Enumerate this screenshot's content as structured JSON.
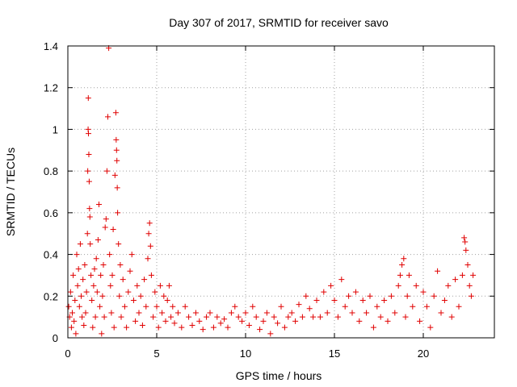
{
  "chart_data": {
    "type": "scatter",
    "title": "Day 307 of 2017, SRMTID for receiver savo",
    "xlabel": "GPS time / hours",
    "ylabel": "SRMTID / TECUs",
    "xlim": [
      0,
      24
    ],
    "ylim": [
      0,
      1.4
    ],
    "xticks": [
      0,
      5,
      10,
      15,
      20
    ],
    "yticks": [
      0,
      0.2,
      0.4,
      0.6,
      0.8,
      1,
      1.2,
      1.4
    ],
    "xtick_labels": [
      "0",
      "5",
      "10",
      "15",
      "20"
    ],
    "ytick_labels": [
      "0",
      "0.2",
      "0.4",
      "0.6",
      "0.8",
      "1",
      "1.2",
      "1.4"
    ],
    "grid": true,
    "marker": "+",
    "color": "#e00000",
    "series": [
      {
        "name": "SRMTID",
        "points": [
          [
            0.05,
            0.15
          ],
          [
            0.1,
            0.1
          ],
          [
            0.15,
            0.22
          ],
          [
            0.2,
            0.05
          ],
          [
            0.25,
            0.12
          ],
          [
            0.3,
            0.3
          ],
          [
            0.35,
            0.08
          ],
          [
            0.4,
            0.18
          ],
          [
            0.45,
            0.02
          ],
          [
            0.5,
            0.4
          ],
          [
            0.55,
            0.25
          ],
          [
            0.6,
            0.33
          ],
          [
            0.65,
            0.15
          ],
          [
            0.7,
            0.45
          ],
          [
            0.75,
            0.2
          ],
          [
            0.8,
            0.1
          ],
          [
            0.85,
            0.28
          ],
          [
            0.9,
            0.06
          ],
          [
            0.95,
            0.35
          ],
          [
            1.0,
            0.12
          ],
          [
            1.05,
            0.22
          ],
          [
            1.1,
            0.5
          ],
          [
            1.12,
            0.8
          ],
          [
            1.14,
            1.0
          ],
          [
            1.15,
            1.15
          ],
          [
            1.16,
            0.98
          ],
          [
            1.18,
            0.88
          ],
          [
            1.2,
            0.75
          ],
          [
            1.22,
            0.62
          ],
          [
            1.24,
            0.58
          ],
          [
            1.26,
            0.45
          ],
          [
            1.3,
            0.3
          ],
          [
            1.35,
            0.18
          ],
          [
            1.4,
            0.05
          ],
          [
            1.45,
            0.25
          ],
          [
            1.5,
            0.33
          ],
          [
            1.55,
            0.1
          ],
          [
            1.6,
            0.38
          ],
          [
            1.65,
            0.22
          ],
          [
            1.7,
            0.47
          ],
          [
            1.75,
            0.64
          ],
          [
            1.8,
            0.15
          ],
          [
            1.85,
            0.3
          ],
          [
            1.9,
            0.02
          ],
          [
            1.95,
            0.2
          ],
          [
            2.0,
            0.35
          ],
          [
            2.05,
            0.1
          ],
          [
            2.1,
            0.53
          ],
          [
            2.15,
            0.57
          ],
          [
            2.2,
            0.8
          ],
          [
            2.25,
            1.06
          ],
          [
            2.3,
            1.39
          ],
          [
            2.35,
            0.4
          ],
          [
            2.4,
            0.25
          ],
          [
            2.45,
            0.12
          ],
          [
            2.5,
            0.3
          ],
          [
            2.55,
            0.52
          ],
          [
            2.6,
            0.05
          ],
          [
            2.65,
            0.78
          ],
          [
            2.7,
            1.08
          ],
          [
            2.72,
            0.95
          ],
          [
            2.74,
            0.9
          ],
          [
            2.76,
            0.85
          ],
          [
            2.78,
            0.72
          ],
          [
            2.8,
            0.6
          ],
          [
            2.85,
            0.45
          ],
          [
            2.9,
            0.2
          ],
          [
            2.95,
            0.35
          ],
          [
            3.0,
            0.1
          ],
          [
            3.1,
            0.28
          ],
          [
            3.2,
            0.15
          ],
          [
            3.3,
            0.05
          ],
          [
            3.4,
            0.22
          ],
          [
            3.5,
            0.32
          ],
          [
            3.6,
            0.4
          ],
          [
            3.7,
            0.18
          ],
          [
            3.8,
            0.08
          ],
          [
            3.9,
            0.25
          ],
          [
            4.0,
            0.12
          ],
          [
            4.1,
            0.2
          ],
          [
            4.2,
            0.06
          ],
          [
            4.3,
            0.28
          ],
          [
            4.4,
            0.15
          ],
          [
            4.5,
            0.38
          ],
          [
            4.55,
            0.5
          ],
          [
            4.6,
            0.55
          ],
          [
            4.65,
            0.44
          ],
          [
            4.7,
            0.3
          ],
          [
            4.8,
            0.1
          ],
          [
            4.9,
            0.22
          ],
          [
            5.0,
            0.15
          ],
          [
            5.1,
            0.05
          ],
          [
            5.2,
            0.25
          ],
          [
            5.3,
            0.12
          ],
          [
            5.4,
            0.2
          ],
          [
            5.5,
            0.08
          ],
          [
            5.6,
            0.18
          ],
          [
            5.7,
            0.25
          ],
          [
            5.8,
            0.1
          ],
          [
            5.9,
            0.15
          ],
          [
            6.0,
            0.07
          ],
          [
            6.2,
            0.12
          ],
          [
            6.4,
            0.05
          ],
          [
            6.6,
            0.15
          ],
          [
            6.8,
            0.1
          ],
          [
            7.0,
            0.06
          ],
          [
            7.2,
            0.12
          ],
          [
            7.4,
            0.08
          ],
          [
            7.6,
            0.04
          ],
          [
            7.8,
            0.1
          ],
          [
            8.0,
            0.12
          ],
          [
            8.2,
            0.05
          ],
          [
            8.4,
            0.1
          ],
          [
            8.6,
            0.07
          ],
          [
            8.8,
            0.09
          ],
          [
            9.0,
            0.05
          ],
          [
            9.2,
            0.12
          ],
          [
            9.4,
            0.15
          ],
          [
            9.6,
            0.1
          ],
          [
            9.8,
            0.08
          ],
          [
            10.0,
            0.12
          ],
          [
            10.2,
            0.06
          ],
          [
            10.4,
            0.15
          ],
          [
            10.6,
            0.1
          ],
          [
            10.8,
            0.04
          ],
          [
            11.0,
            0.08
          ],
          [
            11.2,
            0.12
          ],
          [
            11.4,
            0.02
          ],
          [
            11.6,
            0.1
          ],
          [
            11.8,
            0.07
          ],
          [
            12.0,
            0.15
          ],
          [
            12.2,
            0.05
          ],
          [
            12.4,
            0.1
          ],
          [
            12.6,
            0.12
          ],
          [
            12.8,
            0.08
          ],
          [
            13.0,
            0.16
          ],
          [
            13.2,
            0.1
          ],
          [
            13.4,
            0.2
          ],
          [
            13.6,
            0.14
          ],
          [
            13.8,
            0.1
          ],
          [
            14.0,
            0.18
          ],
          [
            14.2,
            0.1
          ],
          [
            14.4,
            0.22
          ],
          [
            14.6,
            0.12
          ],
          [
            14.8,
            0.25
          ],
          [
            15.0,
            0.18
          ],
          [
            15.2,
            0.1
          ],
          [
            15.4,
            0.28
          ],
          [
            15.6,
            0.15
          ],
          [
            15.8,
            0.2
          ],
          [
            16.0,
            0.12
          ],
          [
            16.2,
            0.22
          ],
          [
            16.4,
            0.08
          ],
          [
            16.6,
            0.18
          ],
          [
            16.8,
            0.12
          ],
          [
            17.0,
            0.2
          ],
          [
            17.2,
            0.05
          ],
          [
            17.4,
            0.15
          ],
          [
            17.6,
            0.1
          ],
          [
            17.8,
            0.18
          ],
          [
            18.0,
            0.08
          ],
          [
            18.2,
            0.2
          ],
          [
            18.4,
            0.12
          ],
          [
            18.6,
            0.25
          ],
          [
            18.7,
            0.3
          ],
          [
            18.8,
            0.35
          ],
          [
            18.9,
            0.38
          ],
          [
            19.0,
            0.1
          ],
          [
            19.1,
            0.2
          ],
          [
            19.2,
            0.3
          ],
          [
            19.4,
            0.15
          ],
          [
            19.6,
            0.25
          ],
          [
            19.8,
            0.08
          ],
          [
            20.0,
            0.22
          ],
          [
            20.2,
            0.15
          ],
          [
            20.4,
            0.05
          ],
          [
            20.6,
            0.2
          ],
          [
            20.8,
            0.32
          ],
          [
            21.0,
            0.12
          ],
          [
            21.2,
            0.18
          ],
          [
            21.4,
            0.25
          ],
          [
            21.6,
            0.1
          ],
          [
            21.8,
            0.28
          ],
          [
            22.0,
            0.15
          ],
          [
            22.2,
            0.3
          ],
          [
            22.3,
            0.48
          ],
          [
            22.35,
            0.46
          ],
          [
            22.4,
            0.42
          ],
          [
            22.5,
            0.35
          ],
          [
            22.6,
            0.25
          ],
          [
            22.7,
            0.2
          ],
          [
            22.8,
            0.3
          ]
        ]
      }
    ]
  }
}
